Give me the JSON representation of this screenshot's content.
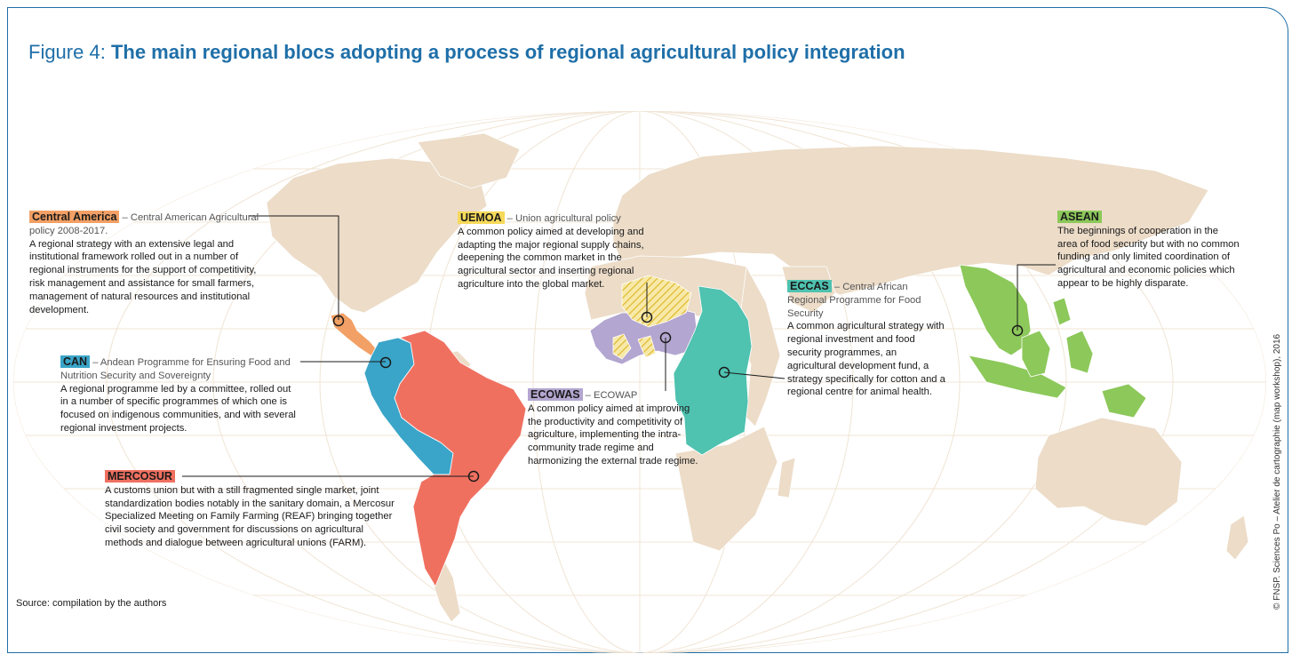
{
  "title": {
    "prefix": "Figure 4: ",
    "main": "The main regional blocs adopting a process of regional agricultural policy integration"
  },
  "colors": {
    "frame": "#1f6fa8",
    "land": "#ecdcc8",
    "ocean": "#ffffff",
    "graticule": "#f0e4d4",
    "central_america": "#f2a065",
    "can": "#3aa5c8",
    "mercosur": "#f07060",
    "uemoa": "#f6d95a",
    "ecowas": "#b3a6d0",
    "eccas": "#4fc2b0",
    "asean": "#8cc85a"
  },
  "blocs": [
    {
      "id": "central_america",
      "tag": "Central America",
      "dash": " – ",
      "subtitle": "Central American Agricultural policy 2008-2017.",
      "body": "A regional strategy with an extensive legal and institutional framework rolled out in a number of regional instruments for the support of competitivity, risk management and assistance for small farmers, management of natural resources and institutional development."
    },
    {
      "id": "can",
      "tag": "CAN",
      "dash": " – ",
      "subtitle": "Andean Programme for Ensuring Food and Nutrition Security and Sovereignty",
      "body": "A regional programme led by a committee, rolled out in a number of specific programmes of which one is focused on indigenous communities, and with several regional investment projects."
    },
    {
      "id": "mercosur",
      "tag": "MERCOSUR",
      "dash": "",
      "subtitle": "",
      "body": "A customs union but with a still fragmented single market, joint standardization bodies notably in the sanitary domain, a Mercosur Specialized Meeting on Family Farming (REAF) bringing together civil society and government for discussions on agricultural methods and dialogue between agricultural unions (FARM)."
    },
    {
      "id": "uemoa",
      "tag": "UEMOA",
      "dash": " – ",
      "subtitle": "Union agricultural policy",
      "body": "A common policy aimed at developing and adapting the major regional supply chains, deepening the common market in the agricultural sector and inserting regional agriculture into the global market."
    },
    {
      "id": "ecowas",
      "tag": "ECOWAS",
      "dash": " – ",
      "subtitle": "ECOWAP",
      "body": "A common policy aimed at improving the productivity and competitivity of agriculture, implementing the intra-community trade regime and harmonizing the external trade regime."
    },
    {
      "id": "eccas",
      "tag": "ECCAS",
      "dash": " – ",
      "subtitle": "Central African Regional Programme for Food Security",
      "body": "A common agricultural strategy with regional investment and food security programmes, an agricultural development fund, a strategy specifically for cotton and a regional centre for animal health."
    },
    {
      "id": "asean",
      "tag": "ASEAN",
      "dash": "",
      "subtitle": "",
      "body": "The beginnings of cooperation in the area of food security but with no common funding and only limited coordination of agricultural and economic policies which appear to be highly disparate."
    }
  ],
  "source": "Source: compilation by the authors",
  "credit": "© FNSP. Sciences Po – Atelier de cartographie (map workshop), 2016"
}
